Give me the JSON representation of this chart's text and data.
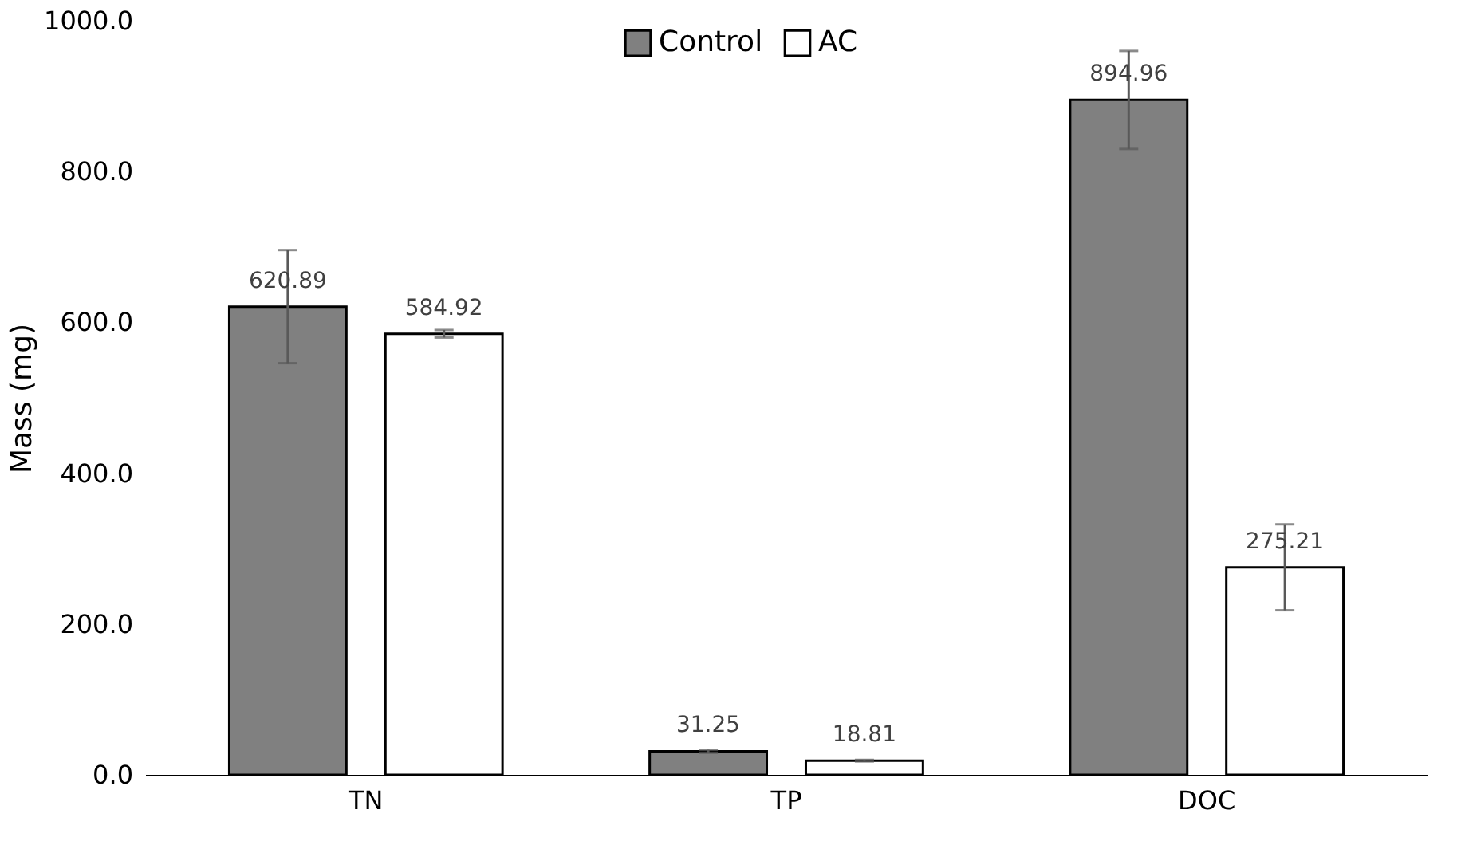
{
  "chart_data": {
    "type": "bar",
    "ylabel": "Mass (mg)",
    "categories": [
      "TN",
      "TP",
      "DOC"
    ],
    "series": [
      {
        "name": "Control",
        "color": "#808080",
        "values": [
          620.89,
          31.25,
          894.96
        ],
        "errors": [
          75,
          2,
          65
        ]
      },
      {
        "name": "AC",
        "color": "#ffffff",
        "values": [
          584.92,
          18.81,
          275.21
        ],
        "errors": [
          5,
          1,
          57
        ]
      }
    ],
    "ylim": [
      0,
      1000
    ],
    "yticks": [
      {
        "value": 0,
        "label": "0.0"
      },
      {
        "value": 200,
        "label": "200.0"
      },
      {
        "value": 400,
        "label": "400.0"
      },
      {
        "value": 600,
        "label": "600.0"
      },
      {
        "value": 800,
        "label": "800.0"
      },
      {
        "value": 1000,
        "label": "1000.0"
      }
    ],
    "data_labels": true,
    "legend": "top",
    "grid": false
  }
}
